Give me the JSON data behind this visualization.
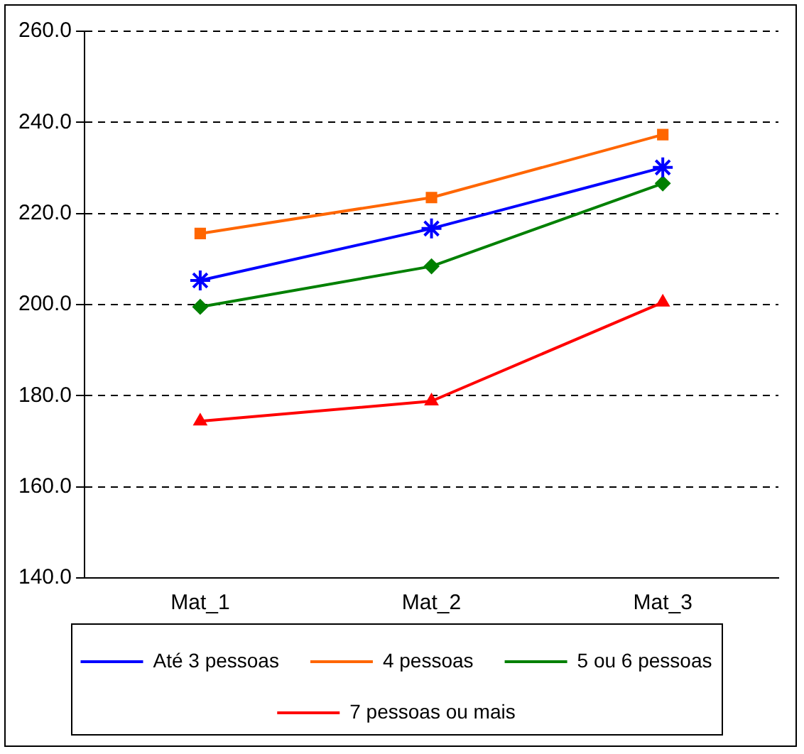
{
  "chart_data": {
    "type": "line",
    "categories": [
      "Mat_1",
      "Mat_2",
      "Mat_3"
    ],
    "series": [
      {
        "name": "Até 3 pessoas",
        "color": "#0000ff",
        "marker": "cross",
        "values": [
          205.3,
          216.7,
          230.1
        ]
      },
      {
        "name": "4 pessoas",
        "color": "#ff6600",
        "marker": "square",
        "values": [
          215.6,
          223.5,
          237.3
        ]
      },
      {
        "name": "5 ou 6 pessoas",
        "color": "#008000",
        "marker": "diamond",
        "values": [
          199.5,
          208.4,
          226.6
        ]
      },
      {
        "name": "7 pessoas ou mais",
        "color": "#ff0000",
        "marker": "triangle",
        "values": [
          174.4,
          178.8,
          200.5
        ]
      }
    ],
    "ylim": [
      140,
      260
    ],
    "yticks": [
      {
        "value": 140,
        "label": "140.0"
      },
      {
        "value": 160,
        "label": "160.0"
      },
      {
        "value": 180,
        "label": "180.0"
      },
      {
        "value": 200,
        "label": "200.0"
      },
      {
        "value": 220,
        "label": "220.0"
      },
      {
        "value": 240,
        "label": "240.0"
      },
      {
        "value": 260,
        "label": "260.0"
      }
    ],
    "grid": "y",
    "legend": "bottom",
    "line_style": "solid"
  }
}
